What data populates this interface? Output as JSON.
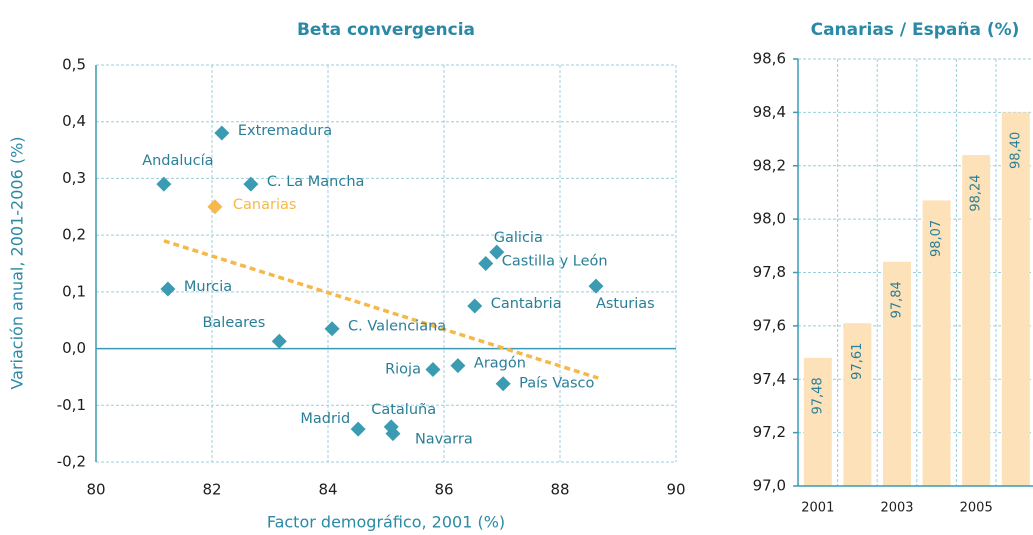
{
  "chart_data": [
    {
      "type": "scatter",
      "title": "Beta convergencia",
      "xlabel": "Factor demográfico, 2001 (%)",
      "ylabel": "Variación anual, 2001-2006 (%)",
      "labels": [
        "Extremadura",
        "Andalucía",
        "C. La Mancha",
        "Canarias",
        "Galicia",
        "Castilla y León",
        "Murcia",
        "Asturias",
        "Cantabria",
        "C. Valenciana",
        "Baleares",
        "Rioja",
        "Aragón",
        "País Vasco",
        "Cataluña",
        "Madrid",
        "Navarra"
      ],
      "x": [
        82.17,
        81.17,
        82.67,
        82.05,
        86.91,
        86.72,
        81.24,
        88.62,
        86.53,
        84.07,
        83.16,
        85.81,
        86.24,
        87.02,
        85.09,
        84.52,
        85.12
      ],
      "values": [
        0.38,
        0.29,
        0.29,
        0.25,
        0.17,
        0.15,
        0.105,
        0.11,
        0.075,
        0.035,
        0.013,
        -0.037,
        -0.03,
        -0.062,
        -0.138,
        -0.142,
        -0.15
      ],
      "colors": [
        "#3a9bb3",
        "#3a9bb3",
        "#3a9bb3",
        "#f6b84a",
        "#3a9bb3",
        "#3a9bb3",
        "#3a9bb3",
        "#3a9bb3",
        "#3a9bb3",
        "#3a9bb3",
        "#3a9bb3",
        "#3a9bb3",
        "#3a9bb3",
        "#3a9bb3",
        "#3a9bb3",
        "#3a9bb3",
        "#3a9bb3"
      ],
      "trend": {
        "x": [
          81.17,
          88.66
        ],
        "values": [
          0.19,
          -0.052
        ],
        "color": "#f6b84a"
      },
      "xlim": [
        80,
        90
      ],
      "xticks": [
        80,
        82,
        84,
        86,
        88,
        90
      ],
      "ylim": [
        -0.2,
        0.5
      ],
      "yticks": [
        {
          "value": -0.2,
          "label": "-0,2"
        },
        {
          "value": -0.1,
          "label": "-0,1"
        },
        {
          "value": 0,
          "label": "0,0"
        },
        {
          "value": 0.1,
          "label": "0,1"
        },
        {
          "value": 0.2,
          "label": "0,2"
        },
        {
          "value": 0.3,
          "label": "0,3"
        },
        {
          "value": 0.4,
          "label": "0,4"
        },
        {
          "value": 0.5,
          "label": "0,5"
        }
      ],
      "grid": true
    },
    {
      "type": "bar",
      "title": "Canarias / España (%)",
      "categories": [
        "2001",
        null,
        "2003",
        null,
        "2005",
        null
      ],
      "values": [
        97.48,
        97.61,
        97.84,
        98.07,
        98.24,
        98.4
      ],
      "value_labels": [
        "97,48",
        "97,61",
        "97,84",
        "98,07",
        "98,24",
        "98,40"
      ],
      "color": "#fde1b8",
      "ylim": [
        97.0,
        98.6
      ],
      "yticks": [
        {
          "value": 97.0,
          "label": "97,0"
        },
        {
          "value": 97.2,
          "label": "97,2"
        },
        {
          "value": 97.4,
          "label": "97,4"
        },
        {
          "value": 97.6,
          "label": "97,6"
        },
        {
          "value": 97.8,
          "label": "97,8"
        },
        {
          "value": 98.0,
          "label": "98,0"
        },
        {
          "value": 98.2,
          "label": "98,2"
        },
        {
          "value": 98.4,
          "label": "98,4"
        },
        {
          "value": 98.6,
          "label": "98,6"
        }
      ],
      "grid": true
    }
  ]
}
